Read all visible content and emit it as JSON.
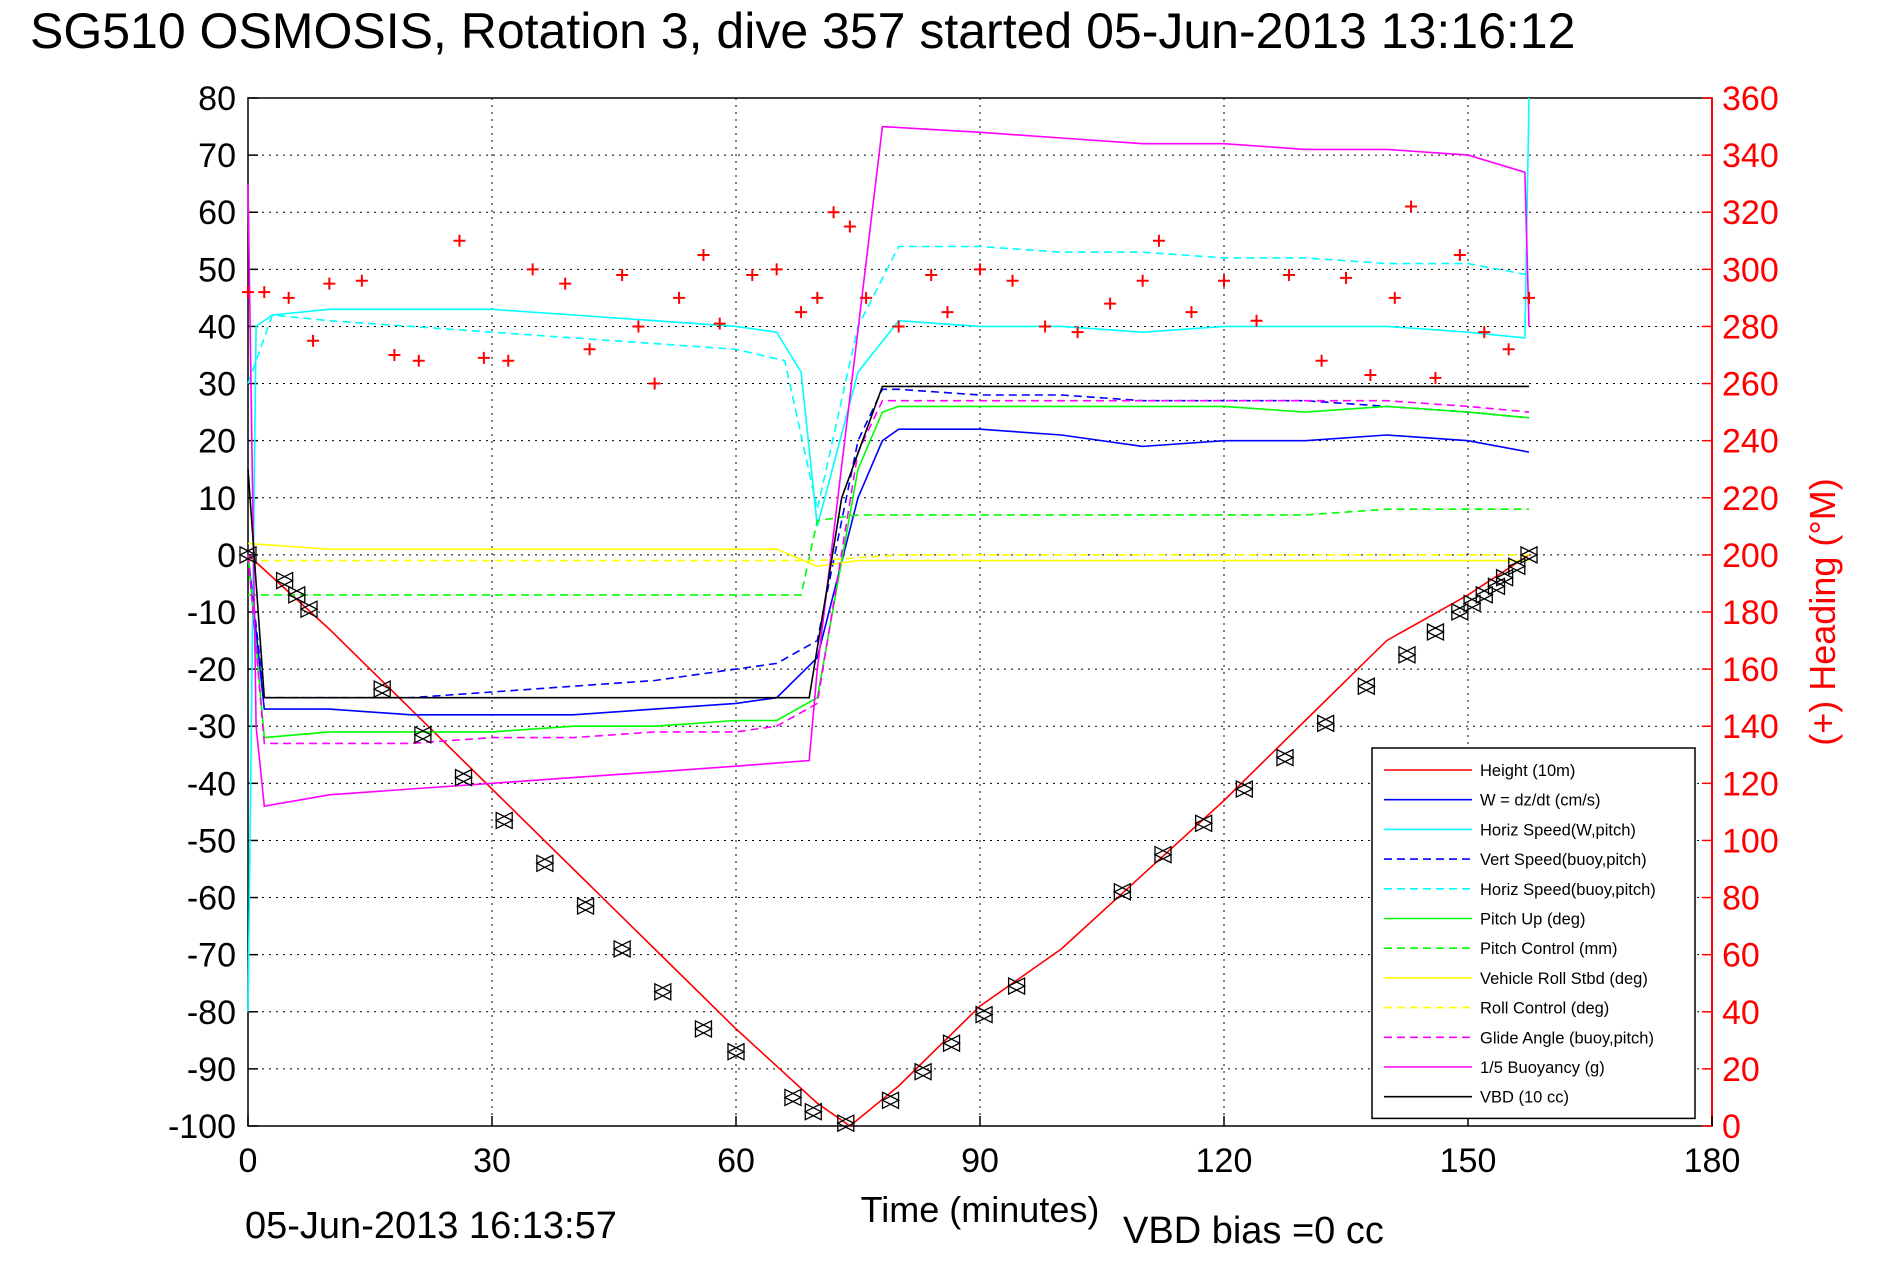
{
  "title": "SG510 OSMOSIS, Rotation 3, dive 357 started 05-Jun-2013 13:16:12",
  "footer": {
    "date": "05-Jun-2013 16:13:57",
    "vbd_bias": "VBD bias =0 cc"
  },
  "chart_data": {
    "type": "line",
    "xlabel": "Time (minutes)",
    "ylabel_right": "(+) Heading (°M)",
    "xlim": [
      0,
      180
    ],
    "ylim": [
      -100,
      80
    ],
    "y2lim": [
      0,
      360
    ],
    "xticks": [
      "0",
      "30",
      "60",
      "90",
      "120",
      "150",
      "180"
    ],
    "yticks": [
      "80",
      "70",
      "60",
      "50",
      "40",
      "30",
      "20",
      "10",
      "0",
      "-10",
      "-20",
      "-30",
      "-40",
      "-50",
      "-60",
      "-70",
      "-80",
      "-90",
      "-100"
    ],
    "y2ticks": [
      "360",
      "340",
      "320",
      "300",
      "280",
      "260",
      "240",
      "220",
      "200",
      "180",
      "160",
      "140",
      "120",
      "100",
      "80",
      "60",
      "40",
      "20",
      "0"
    ],
    "grid": true,
    "legend_position": "bottom-right",
    "series": [
      {
        "name": "Height (10m)",
        "color": "#ff0000",
        "style": "solid",
        "x": [
          0,
          10,
          20,
          30,
          40,
          50,
          60,
          70,
          74,
          80,
          90,
          100,
          110,
          120,
          130,
          140,
          150,
          157.5
        ],
        "y": [
          0,
          -13,
          -27,
          -41,
          -55,
          -69,
          -83,
          -96,
          -100,
          -93,
          -79,
          -69,
          -56,
          -43,
          -29,
          -15,
          -7,
          0
        ]
      },
      {
        "name": "W = dz/dt (cm/s)",
        "color": "#0000ff",
        "style": "solid",
        "x": [
          0,
          2,
          10,
          20,
          30,
          40,
          50,
          60,
          65,
          70,
          75,
          78,
          80,
          90,
          100,
          110,
          120,
          130,
          140,
          150,
          157.5
        ],
        "y": [
          0,
          -27,
          -27,
          -28,
          -28,
          -28,
          -27,
          -26,
          -25,
          -18,
          10,
          20,
          22,
          22,
          21,
          19,
          20,
          20,
          21,
          20,
          18
        ]
      },
      {
        "name": "Horiz Speed(W,pitch)",
        "color": "#00ffff",
        "style": "solid",
        "x": [
          0,
          1,
          3,
          10,
          20,
          30,
          40,
          50,
          60,
          65,
          68,
          70,
          75,
          80,
          90,
          100,
          110,
          120,
          130,
          140,
          150,
          157,
          157.5
        ],
        "y": [
          -80,
          40,
          42,
          43,
          43,
          43,
          42,
          41,
          40,
          39,
          32,
          5,
          32,
          41,
          40,
          40,
          39,
          40,
          40,
          40,
          39,
          38,
          80
        ]
      },
      {
        "name": "Vert Speed(buoy,pitch)",
        "color": "#0000ff",
        "style": "dashed",
        "x": [
          0,
          2,
          10,
          20,
          30,
          40,
          50,
          60,
          65,
          70,
          75,
          78,
          80,
          90,
          100,
          110,
          120,
          130,
          140,
          150,
          157.5
        ],
        "y": [
          0,
          -25,
          -25,
          -25,
          -24,
          -23,
          -22,
          -20,
          -19,
          -15,
          20,
          29,
          29,
          28,
          28,
          27,
          27,
          27,
          26,
          25,
          24
        ]
      },
      {
        "name": "Horiz Speed(buoy,pitch)",
        "color": "#00ffff",
        "style": "dashed",
        "x": [
          0,
          3,
          10,
          20,
          30,
          40,
          50,
          60,
          66,
          70,
          75,
          80,
          90,
          100,
          110,
          120,
          130,
          140,
          150,
          157.5
        ],
        "y": [
          30,
          42,
          41,
          40,
          39,
          38,
          37,
          36,
          34,
          8,
          40,
          54,
          54,
          53,
          53,
          52,
          52,
          51,
          51,
          49
        ]
      },
      {
        "name": "Pitch Up (deg)",
        "color": "#00ff00",
        "style": "solid",
        "x": [
          0,
          2,
          10,
          20,
          30,
          40,
          50,
          60,
          65,
          70,
          75,
          78,
          80,
          90,
          100,
          110,
          120,
          130,
          140,
          150,
          157.5
        ],
        "y": [
          0,
          -32,
          -31,
          -31,
          -31,
          -30,
          -30,
          -29,
          -29,
          -25,
          15,
          25,
          26,
          26,
          26,
          26,
          26,
          25,
          26,
          25,
          24
        ]
      },
      {
        "name": "Pitch Control (mm)",
        "color": "#00ff00",
        "style": "dashed",
        "x": [
          0,
          1,
          10,
          20,
          30,
          40,
          50,
          60,
          68,
          70,
          75,
          80,
          90,
          100,
          110,
          120,
          130,
          140,
          150,
          157.5
        ],
        "y": [
          -7,
          -7,
          -7,
          -7,
          -7,
          -7,
          -7,
          -7,
          -7,
          6,
          7,
          7,
          7,
          7,
          7,
          7,
          7,
          8,
          8,
          8
        ]
      },
      {
        "name": "Vehicle Roll Stbd (deg)",
        "color": "#ffff00",
        "style": "solid",
        "x": [
          0,
          10,
          20,
          30,
          40,
          50,
          60,
          65,
          70,
          75,
          80,
          90,
          100,
          110,
          120,
          130,
          140,
          150,
          157.5
        ],
        "y": [
          2,
          1,
          1,
          1,
          1,
          1,
          1,
          1,
          -2,
          -1,
          -1,
          -1,
          -1,
          -1,
          -1,
          -1,
          -1,
          -1,
          -1
        ]
      },
      {
        "name": "Roll Control (deg)",
        "color": "#ffff00",
        "style": "dashed",
        "x": [
          0,
          10,
          20,
          30,
          40,
          50,
          60,
          70,
          80,
          90,
          100,
          110,
          120,
          130,
          140,
          150,
          157.5
        ],
        "y": [
          -1,
          -1,
          -1,
          -1,
          -1,
          -1,
          -1,
          -1,
          0,
          0,
          0,
          0,
          0,
          0,
          0,
          0,
          0
        ]
      },
      {
        "name": "Glide Angle (buoy,pitch)",
        "color": "#ff00ff",
        "style": "dashed",
        "x": [
          0,
          2,
          10,
          20,
          30,
          40,
          50,
          60,
          65,
          70,
          75,
          78,
          80,
          90,
          100,
          110,
          120,
          130,
          140,
          150,
          157.5
        ],
        "y": [
          0,
          -33,
          -33,
          -33,
          -32,
          -32,
          -31,
          -31,
          -30,
          -26,
          18,
          27,
          27,
          27,
          27,
          27,
          27,
          27,
          27,
          26,
          25
        ]
      },
      {
        "name": "1/5 Buoyancy (g)",
        "color": "#ff00ff",
        "style": "solid",
        "x": [
          0,
          1,
          2,
          10,
          20,
          30,
          40,
          50,
          60,
          69,
          70,
          78,
          90,
          100,
          110,
          120,
          130,
          140,
          150,
          157,
          157.5
        ],
        "y": [
          65,
          -30,
          -44,
          -42,
          -41,
          -40,
          -39,
          -38,
          -37,
          -36,
          -20,
          75,
          74,
          73,
          72,
          72,
          71,
          71,
          70,
          67,
          40
        ]
      },
      {
        "name": "VBD (10 cc)",
        "color": "#000000",
        "style": "solid",
        "x": [
          0,
          2,
          10,
          20,
          30,
          40,
          50,
          60,
          69,
          73,
          78,
          90,
          100,
          110,
          120,
          130,
          140,
          150,
          157.5
        ],
        "y": [
          15,
          -25,
          -25,
          -25,
          -25,
          -25,
          -25,
          -25,
          -25,
          10,
          29.5,
          29.5,
          29.5,
          29.5,
          29.5,
          29.5,
          29.5,
          29.5,
          29.5
        ]
      },
      {
        "name": "Heading",
        "color": "#ff0000",
        "style": "markers",
        "axis": "right",
        "x": [
          0,
          2,
          5,
          8,
          10,
          14,
          18,
          21,
          26,
          29,
          32,
          35,
          39,
          42,
          46,
          48,
          50,
          53,
          56,
          58,
          62,
          65,
          68,
          70,
          72,
          74,
          76,
          80,
          84,
          86,
          90,
          94,
          98,
          102,
          106,
          110,
          112,
          116,
          120,
          124,
          128,
          132,
          135,
          138,
          141,
          143,
          146,
          149,
          152,
          155,
          157.5
        ],
        "y": [
          292,
          292,
          290,
          275,
          295,
          296,
          270,
          268,
          310,
          269,
          268,
          300,
          295,
          272,
          298,
          280,
          260,
          290,
          305,
          281,
          298,
          300,
          285,
          290,
          320,
          315,
          290,
          280,
          298,
          285,
          300,
          296,
          280,
          278,
          288,
          296,
          310,
          285,
          296,
          282,
          298,
          268,
          297,
          263,
          290,
          322,
          262,
          305,
          278,
          272,
          290
        ]
      }
    ],
    "triangle_markers": {
      "x": [
        0,
        4.5,
        6,
        7.5,
        16.5,
        21.5,
        26.5,
        31.5,
        36.5,
        41.5,
        46,
        51,
        56,
        60,
        67,
        69.5,
        73.5,
        79,
        83,
        86.5,
        90.5,
        94.5,
        107.5,
        112.5,
        117.5,
        122.5,
        127.5,
        132.5,
        137.5,
        142.5,
        146,
        149,
        150.5,
        152,
        153.5,
        154.5,
        156,
        157.5
      ],
      "y": [
        0,
        -4.5,
        -7,
        -9.5,
        -23.5,
        -31.5,
        -39,
        -46.5,
        -54,
        -61.5,
        -69,
        -76.5,
        -83,
        -87,
        -95,
        -97.5,
        -99.5,
        -95.5,
        -90.5,
        -85.5,
        -80.5,
        -75.5,
        -59,
        -52.5,
        -47,
        -41,
        -35.5,
        -29.5,
        -23,
        -17.5,
        -13.5,
        -10,
        -8.5,
        -7,
        -5.5,
        -4,
        -2,
        0
      ]
    }
  }
}
